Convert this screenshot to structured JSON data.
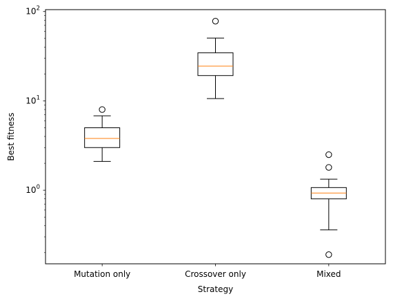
{
  "chart_data": {
    "type": "box",
    "xlabel": "Strategy",
    "ylabel": "Best fitness",
    "yscale": "log",
    "ylim": [
      0.15,
      105
    ],
    "major_ticks": [
      {
        "value": 1,
        "label": "10",
        "exp": "0"
      },
      {
        "value": 10,
        "label": "10",
        "exp": "1"
      },
      {
        "value": 100,
        "label": "10",
        "exp": "2"
      }
    ],
    "grid": false,
    "series_colors": {
      "box": "#000000",
      "median": "#ff7f0e"
    },
    "boxes": [
      {
        "category": "Mutation only",
        "whisker_low": 2.1,
        "q1": 3.0,
        "median": 3.8,
        "q3": 5.0,
        "whisker_high": 6.8,
        "outliers": [
          8.0
        ]
      },
      {
        "category": "Crossover only",
        "whisker_low": 10.6,
        "q1": 19.2,
        "median": 24.5,
        "q3": 34.5,
        "whisker_high": 50.5,
        "outliers": [
          78.0
        ]
      },
      {
        "category": "Mixed",
        "whisker_low": 0.36,
        "q1": 0.8,
        "median": 0.93,
        "q3": 1.07,
        "whisker_high": 1.33,
        "outliers": [
          2.5,
          1.8,
          0.19
        ]
      }
    ]
  }
}
